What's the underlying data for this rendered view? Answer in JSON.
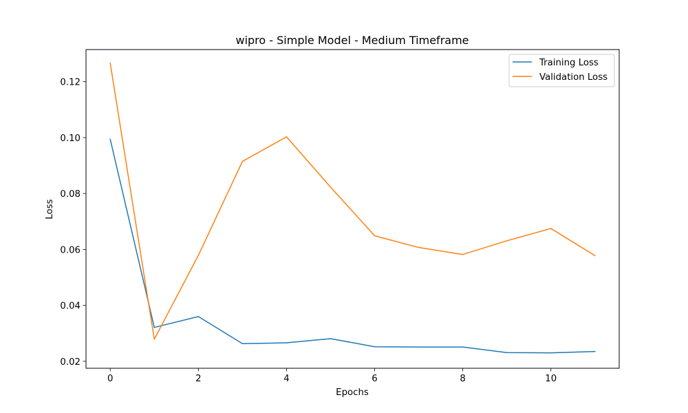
{
  "chart_data": {
    "type": "line",
    "title": "wipro - Simple Model - Medium Timeframe",
    "xlabel": "Epochs",
    "ylabel": "Loss",
    "x": [
      0,
      1,
      2,
      3,
      4,
      5,
      6,
      7,
      8,
      9,
      10,
      11
    ],
    "xlim": [
      -0.55,
      11.55
    ],
    "ylim": [
      0.0175,
      0.1315
    ],
    "xticks": [
      0,
      2,
      4,
      6,
      8,
      10
    ],
    "xtick_labels": [
      "0",
      "2",
      "4",
      "6",
      "8",
      "10"
    ],
    "yticks": [
      0.02,
      0.04,
      0.06,
      0.08,
      0.1,
      0.12
    ],
    "ytick_labels": [
      "0.02",
      "0.04",
      "0.06",
      "0.08",
      "0.10",
      "0.12"
    ],
    "grid": false,
    "legend_position": "top-right",
    "series": [
      {
        "name": "Training Loss",
        "color": "#1f77b4",
        "values": [
          0.0994,
          0.0321,
          0.036,
          0.0263,
          0.0266,
          0.0281,
          0.0252,
          0.0251,
          0.0251,
          0.0231,
          0.023,
          0.0235
        ]
      },
      {
        "name": "Validation Loss",
        "color": "#ff7f0e",
        "values": [
          0.1266,
          0.0279,
          0.0579,
          0.0915,
          0.1003,
          0.0823,
          0.0649,
          0.0607,
          0.0582,
          0.0631,
          0.0675,
          0.0578
        ]
      }
    ]
  }
}
